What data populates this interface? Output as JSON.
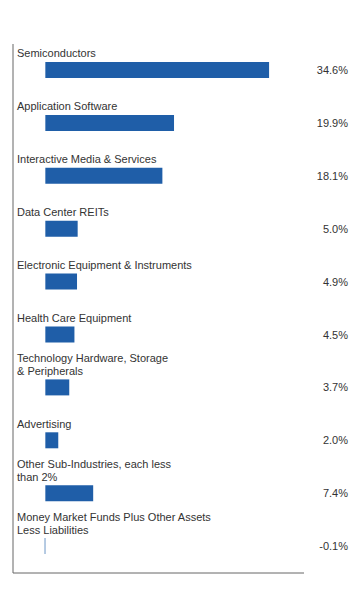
{
  "chart_data": {
    "type": "bar",
    "orientation": "horizontal",
    "categories": [
      "Semiconductors",
      "Application Software",
      "Interactive Media & Services",
      "Data Center REITs",
      "Electronic Equipment & Instruments",
      "Health Care Equipment",
      "Technology Hardware, Storage\n& Peripherals",
      "Advertising",
      "Other Sub-Industries, each less\nthan 2%",
      "Money Market Funds Plus Other Assets\nLess Liabilities"
    ],
    "values": [
      34.6,
      19.9,
      18.1,
      5.0,
      4.9,
      4.5,
      3.7,
      2.0,
      7.4,
      -0.1
    ],
    "value_labels": [
      "34.6%",
      "19.9%",
      "18.1%",
      "5.0%",
      "4.9%",
      "4.5%",
      "3.7%",
      "2.0%",
      "7.4%",
      "-0.1%"
    ],
    "data_labels": true,
    "color": "#1F5EA8",
    "xlim": [
      -5,
      40
    ],
    "tick_labels": false
  }
}
